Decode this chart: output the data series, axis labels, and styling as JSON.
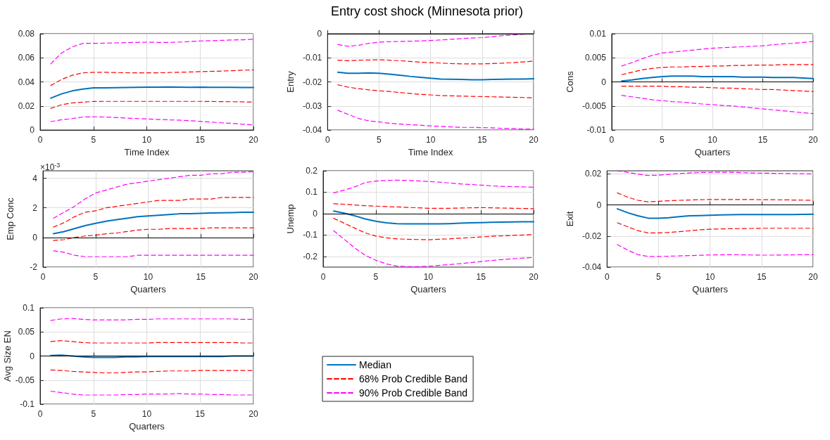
{
  "chart_data": [
    {
      "type": "line",
      "xlabel": "Time Index",
      "x": [
        1,
        2,
        3,
        4,
        5,
        6,
        7,
        8,
        9,
        10,
        11,
        12,
        13,
        14,
        15,
        16,
        17,
        18,
        19,
        20
      ],
      "xlim": [
        0,
        20
      ],
      "xticks": [
        0,
        5,
        10,
        15,
        20
      ],
      "ylim": [
        0,
        0.08
      ],
      "yticks": [
        0,
        0.02,
        0.04,
        0.06,
        0.08
      ],
      "grid": true,
      "legend": false,
      "marker": "none",
      "series": [
        {
          "color": "#0072bd",
          "line_style": "solid",
          "values": [
            0.0265,
            0.03,
            0.0325,
            0.034,
            0.035,
            0.035,
            0.0352,
            0.0354,
            0.0355,
            0.0356,
            0.0356,
            0.0358,
            0.0356,
            0.0355,
            0.0356,
            0.0355,
            0.0355,
            0.0355,
            0.0354,
            0.0354
          ]
        },
        {
          "color": "#ff0000",
          "line_style": "dashed",
          "values": [
            0.037,
            0.042,
            0.0455,
            0.0475,
            0.048,
            0.048,
            0.0478,
            0.0476,
            0.0475,
            0.0475,
            0.0475,
            0.0478,
            0.048,
            0.0482,
            0.0485,
            0.0487,
            0.049,
            0.0493,
            0.0497,
            0.05
          ]
        },
        {
          "color": "#ff0000",
          "line_style": "dashed",
          "values": [
            0.018,
            0.021,
            0.0225,
            0.0232,
            0.0237,
            0.0238,
            0.0238,
            0.0238,
            0.0238,
            0.0238,
            0.0238,
            0.0238,
            0.0238,
            0.0238,
            0.0238,
            0.0237,
            0.0236,
            0.0235,
            0.0234,
            0.0232
          ]
        },
        {
          "color": "#ff00ff",
          "line_style": "dashed",
          "values": [
            0.055,
            0.064,
            0.069,
            0.072,
            0.072,
            0.0722,
            0.0724,
            0.0726,
            0.0728,
            0.073,
            0.0728,
            0.0728,
            0.073,
            0.0735,
            0.074,
            0.0742,
            0.0745,
            0.0748,
            0.075,
            0.0755
          ]
        },
        {
          "color": "#ff00ff",
          "line_style": "dashed",
          "values": [
            0.007,
            0.0085,
            0.0095,
            0.0108,
            0.011,
            0.0108,
            0.0104,
            0.01,
            0.0096,
            0.0092,
            0.0088,
            0.0085,
            0.0082,
            0.0078,
            0.0072,
            0.0066,
            0.006,
            0.0055,
            0.0048,
            0.0042
          ]
        }
      ]
    },
    {
      "type": "line",
      "title": "Entry cost shock (Minnesota prior)",
      "xlabel": "Time Index",
      "ylabel": "Entry",
      "x": [
        1,
        2,
        3,
        4,
        5,
        6,
        7,
        8,
        9,
        10,
        11,
        12,
        13,
        14,
        15,
        16,
        17,
        18,
        19,
        20
      ],
      "xlim": [
        0,
        20
      ],
      "xticks": [
        0,
        5,
        10,
        15,
        20
      ],
      "ylim": [
        -0.04,
        0
      ],
      "yticks": [
        -0.04,
        -0.03,
        -0.02,
        -0.01,
        0
      ],
      "grid": true,
      "legend": false,
      "marker": "none",
      "ref_lines": [
        {
          "axis": "y",
          "value": 0,
          "color": "#000000"
        }
      ],
      "series": [
        {
          "color": "#0072bd",
          "line_style": "solid",
          "values": [
            -0.016,
            -0.0164,
            -0.0164,
            -0.0163,
            -0.0164,
            -0.0168,
            -0.0172,
            -0.0177,
            -0.0181,
            -0.0185,
            -0.0188,
            -0.0189,
            -0.019,
            -0.0191,
            -0.0191,
            -0.019,
            -0.0189,
            -0.0188,
            -0.0188,
            -0.0187
          ]
        },
        {
          "color": "#ff0000",
          "line_style": "dashed",
          "values": [
            -0.011,
            -0.0112,
            -0.011,
            -0.0109,
            -0.0108,
            -0.011,
            -0.0112,
            -0.0115,
            -0.0118,
            -0.012,
            -0.0122,
            -0.0124,
            -0.0125,
            -0.0125,
            -0.0125,
            -0.0124,
            -0.0122,
            -0.012,
            -0.0117,
            -0.0114
          ]
        },
        {
          "color": "#ff0000",
          "line_style": "dashed",
          "values": [
            -0.0212,
            -0.0222,
            -0.0228,
            -0.0233,
            -0.0237,
            -0.024,
            -0.0244,
            -0.0248,
            -0.0252,
            -0.0254,
            -0.0257,
            -0.0258,
            -0.0259,
            -0.026,
            -0.0261,
            -0.0262,
            -0.0263,
            -0.0264,
            -0.0265,
            -0.0266
          ]
        },
        {
          "color": "#ff00ff",
          "line_style": "dashed",
          "values": [
            -0.0045,
            -0.0052,
            -0.0048,
            -0.004,
            -0.0035,
            -0.0033,
            -0.0032,
            -0.0031,
            -0.003,
            -0.0028,
            -0.0026,
            -0.0023,
            -0.002,
            -0.0018,
            -0.0016,
            -0.0012,
            -0.0008,
            -0.0005,
            -0.0002,
            0
          ]
        },
        {
          "color": "#ff00ff",
          "line_style": "dashed",
          "values": [
            -0.0318,
            -0.0335,
            -0.0352,
            -0.0362,
            -0.0366,
            -0.0372,
            -0.0375,
            -0.0378,
            -0.038,
            -0.0383,
            -0.0385,
            -0.0387,
            -0.0389,
            -0.0389,
            -0.039,
            -0.0391,
            -0.0393,
            -0.0394,
            -0.0396,
            -0.0396
          ]
        }
      ]
    },
    {
      "type": "line",
      "xlabel": "Quarters",
      "ylabel": "Cons",
      "x": [
        1,
        2,
        3,
        4,
        5,
        6,
        7,
        8,
        9,
        10,
        11,
        12,
        13,
        14,
        15,
        16,
        17,
        18,
        19,
        20
      ],
      "xlim": [
        0,
        20
      ],
      "xticks": [
        0,
        5,
        10,
        15,
        20
      ],
      "ylim": [
        -0.01,
        0.01
      ],
      "yticks": [
        -0.01,
        -0.005,
        0,
        0.005,
        0.01
      ],
      "grid": true,
      "legend": false,
      "marker": "none",
      "ref_lines": [
        {
          "axis": "y",
          "value": 0,
          "color": "#000000"
        }
      ],
      "series": [
        {
          "color": "#0072bd",
          "line_style": "solid",
          "values": [
            0.0002,
            0.0004,
            0.0007,
            0.0009,
            0.0011,
            0.0012,
            0.0012,
            0.0012,
            0.0011,
            0.0011,
            0.0011,
            0.0011,
            0.001,
            0.001,
            0.001,
            0.0009,
            0.0009,
            0.0009,
            0.0008,
            0.0007
          ]
        },
        {
          "color": "#ff0000",
          "line_style": "dashed",
          "values": [
            0.0015,
            0.002,
            0.0025,
            0.0028,
            0.003,
            0.0031,
            0.0031,
            0.0032,
            0.0032,
            0.0033,
            0.0033,
            0.0034,
            0.0034,
            0.0035,
            0.0035,
            0.0035,
            0.0036,
            0.0036,
            0.0036,
            0.0036
          ]
        },
        {
          "color": "#ff0000",
          "line_style": "dashed",
          "values": [
            -0.0009,
            -0.0009,
            -0.0009,
            -0.0009,
            -0.0009,
            -0.001,
            -0.001,
            -0.0011,
            -0.0011,
            -0.0012,
            -0.0013,
            -0.0013,
            -0.0014,
            -0.0015,
            -0.0016,
            -0.0016,
            -0.0017,
            -0.0018,
            -0.0019,
            -0.002
          ]
        },
        {
          "color": "#ff00ff",
          "line_style": "dashed",
          "values": [
            0.0033,
            0.004,
            0.0048,
            0.0055,
            0.006,
            0.0062,
            0.0064,
            0.0066,
            0.0068,
            0.007,
            0.0071,
            0.0072,
            0.0073,
            0.0074,
            0.0075,
            0.0077,
            0.0079,
            0.008,
            0.0082,
            0.0084
          ]
        },
        {
          "color": "#ff00ff",
          "line_style": "dashed",
          "values": [
            -0.0028,
            -0.0031,
            -0.0034,
            -0.0037,
            -0.0039,
            -0.0041,
            -0.0042,
            -0.0044,
            -0.0046,
            -0.0047,
            -0.0049,
            -0.005,
            -0.0052,
            -0.0054,
            -0.0056,
            -0.0058,
            -0.006,
            -0.0062,
            -0.0064,
            -0.0066
          ]
        }
      ]
    },
    {
      "type": "line",
      "xlabel": "Quarters",
      "ylabel": "Emp Conc",
      "annotations": [
        "×10$^{-3}$"
      ],
      "x": [
        1,
        2,
        3,
        4,
        5,
        6,
        7,
        8,
        9,
        10,
        11,
        12,
        13,
        14,
        15,
        16,
        17,
        18,
        19,
        20
      ],
      "xlim": [
        0,
        20
      ],
      "xticks": [
        0,
        5,
        10,
        15,
        20
      ],
      "ylim": [
        -2,
        4.5
      ],
      "yticks": [
        -2,
        0,
        2,
        4
      ],
      "grid": true,
      "legend": false,
      "marker": "none",
      "ref_lines": [
        {
          "axis": "y",
          "value": 0,
          "color": "#000000"
        }
      ],
      "series": [
        {
          "color": "#0072bd",
          "line_style": "solid",
          "values": [
            0.25,
            0.4,
            0.6,
            0.8,
            0.95,
            1.1,
            1.2,
            1.3,
            1.4,
            1.45,
            1.5,
            1.55,
            1.6,
            1.6,
            1.63,
            1.65,
            1.67,
            1.68,
            1.7,
            1.7
          ]
        },
        {
          "color": "#ff0000",
          "line_style": "dashed",
          "values": [
            0.7,
            1.0,
            1.4,
            1.7,
            1.8,
            2.0,
            2.1,
            2.2,
            2.3,
            2.4,
            2.5,
            2.5,
            2.5,
            2.6,
            2.6,
            2.6,
            2.7,
            2.7,
            2.7,
            2.7
          ]
        },
        {
          "color": "#ff0000",
          "line_style": "dashed",
          "values": [
            -0.2,
            -0.15,
            0,
            0.1,
            0.15,
            0.25,
            0.3,
            0.4,
            0.5,
            0.55,
            0.55,
            0.6,
            0.6,
            0.6,
            0.6,
            0.65,
            0.65,
            0.65,
            0.65,
            0.65
          ]
        },
        {
          "color": "#ff00ff",
          "line_style": "dashed",
          "values": [
            1.3,
            1.7,
            2.1,
            2.6,
            3.0,
            3.2,
            3.4,
            3.6,
            3.7,
            3.8,
            3.9,
            4.0,
            4.1,
            4.2,
            4.2,
            4.3,
            4.3,
            4.4,
            4.4,
            4.45
          ]
        },
        {
          "color": "#ff00ff",
          "line_style": "dashed",
          "values": [
            -0.9,
            -1.0,
            -1.2,
            -1.3,
            -1.3,
            -1.3,
            -1.3,
            -1.3,
            -1.2,
            -1.2,
            -1.2,
            -1.2,
            -1.2,
            -1.2,
            -1.2,
            -1.2,
            -1.2,
            -1.2,
            -1.2,
            -1.2
          ]
        }
      ]
    },
    {
      "type": "line",
      "xlabel": "Quarters",
      "ylabel": "Unemp",
      "x": [
        1,
        2,
        3,
        4,
        5,
        6,
        7,
        8,
        9,
        10,
        11,
        12,
        13,
        14,
        15,
        16,
        17,
        18,
        19,
        20
      ],
      "xlim": [
        0,
        20
      ],
      "xticks": [
        0,
        5,
        10,
        15,
        20
      ],
      "ylim": [
        -0.25,
        0.2
      ],
      "yticks": [
        -0.2,
        -0.1,
        0,
        0.1,
        0.2
      ],
      "grid": true,
      "legend": false,
      "marker": "none",
      "ref_lines": [
        {
          "axis": "y",
          "value": 0,
          "color": "#000000"
        }
      ],
      "series": [
        {
          "color": "#0072bd",
          "line_style": "solid",
          "values": [
            0.012,
            0.002,
            -0.01,
            -0.025,
            -0.036,
            -0.043,
            -0.047,
            -0.048,
            -0.048,
            -0.048,
            -0.048,
            -0.047,
            -0.045,
            -0.043,
            -0.042,
            -0.041,
            -0.04,
            -0.039,
            -0.038,
            -0.038
          ]
        },
        {
          "color": "#ff0000",
          "line_style": "dashed",
          "values": [
            0.046,
            0.044,
            0.04,
            0.037,
            0.035,
            0.033,
            0.031,
            0.029,
            0.027,
            0.025,
            0.025,
            0.025,
            0.026,
            0.027,
            0.028,
            0.027,
            0.026,
            0.025,
            0.024,
            0.023
          ]
        },
        {
          "color": "#ff0000",
          "line_style": "dashed",
          "values": [
            -0.022,
            -0.045,
            -0.068,
            -0.09,
            -0.105,
            -0.113,
            -0.118,
            -0.12,
            -0.121,
            -0.122,
            -0.12,
            -0.118,
            -0.115,
            -0.112,
            -0.109,
            -0.106,
            -0.104,
            -0.102,
            -0.1,
            -0.098
          ]
        },
        {
          "color": "#ff00ff",
          "line_style": "dashed",
          "values": [
            0.097,
            0.11,
            0.125,
            0.145,
            0.152,
            0.155,
            0.156,
            0.155,
            0.153,
            0.15,
            0.147,
            0.143,
            0.139,
            0.136,
            0.133,
            0.13,
            0.127,
            0.126,
            0.125,
            0.123
          ]
        },
        {
          "color": "#ff00ff",
          "line_style": "dashed",
          "values": [
            -0.08,
            -0.12,
            -0.16,
            -0.195,
            -0.218,
            -0.235,
            -0.245,
            -0.248,
            -0.248,
            -0.246,
            -0.242,
            -0.238,
            -0.234,
            -0.229,
            -0.224,
            -0.219,
            -0.215,
            -0.211,
            -0.208,
            -0.205
          ]
        }
      ]
    },
    {
      "type": "line",
      "xlabel": "Quarters",
      "ylabel": "Exit",
      "x": [
        1,
        2,
        3,
        4,
        5,
        6,
        7,
        8,
        9,
        10,
        11,
        12,
        13,
        14,
        15,
        16,
        17,
        18,
        19,
        20
      ],
      "xlim": [
        0,
        20
      ],
      "xticks": [
        0,
        5,
        10,
        15,
        20
      ],
      "ylim": [
        -0.04,
        0.022
      ],
      "yticks": [
        -0.04,
        -0.02,
        0,
        0.02
      ],
      "grid": true,
      "legend": false,
      "marker": "none",
      "ref_lines": [
        {
          "axis": "y",
          "value": 0,
          "color": "#000000"
        }
      ],
      "series": [
        {
          "color": "#0072bd",
          "line_style": "solid",
          "values": [
            -0.0025,
            -0.005,
            -0.007,
            -0.0085,
            -0.0085,
            -0.0082,
            -0.0075,
            -0.007,
            -0.0068,
            -0.0066,
            -0.0064,
            -0.0063,
            -0.0062,
            -0.0062,
            -0.0062,
            -0.0062,
            -0.0062,
            -0.0062,
            -0.0061,
            -0.006
          ]
        },
        {
          "color": "#ff0000",
          "line_style": "dashed",
          "values": [
            0.0078,
            0.005,
            0.003,
            0.002,
            0.0024,
            0.0027,
            0.003,
            0.0032,
            0.0034,
            0.0035,
            0.0035,
            0.0035,
            0.0035,
            0.0035,
            0.0034,
            0.0034,
            0.0033,
            0.0032,
            0.0031,
            0.003
          ]
        },
        {
          "color": "#ff0000",
          "line_style": "dashed",
          "values": [
            -0.0115,
            -0.014,
            -0.0165,
            -0.018,
            -0.018,
            -0.0177,
            -0.0172,
            -0.0166,
            -0.016,
            -0.0156,
            -0.0154,
            -0.0153,
            -0.0152,
            -0.0151,
            -0.015,
            -0.015,
            -0.015,
            -0.015,
            -0.015,
            -0.015
          ]
        },
        {
          "color": "#ff00ff",
          "line_style": "dashed",
          "values": [
            0.022,
            0.021,
            0.0198,
            0.019,
            0.0192,
            0.0197,
            0.0202,
            0.0206,
            0.0209,
            0.021,
            0.021,
            0.021,
            0.0208,
            0.0206,
            0.0205,
            0.0204,
            0.0203,
            0.0202,
            0.0201,
            0.02
          ]
        },
        {
          "color": "#ff00ff",
          "line_style": "dashed",
          "values": [
            -0.0255,
            -0.029,
            -0.032,
            -0.0332,
            -0.0332,
            -0.033,
            -0.0328,
            -0.0326,
            -0.0324,
            -0.0322,
            -0.0321,
            -0.032,
            -0.0321,
            -0.0322,
            -0.0323,
            -0.0323,
            -0.0322,
            -0.0321,
            -0.032,
            -0.032
          ]
        }
      ]
    },
    {
      "type": "line",
      "xlabel": "Quarters",
      "ylabel": "Avg Size EN",
      "x": [
        1,
        2,
        3,
        4,
        5,
        6,
        7,
        8,
        9,
        10,
        11,
        12,
        13,
        14,
        15,
        16,
        17,
        18,
        19,
        20
      ],
      "xlim": [
        0,
        20
      ],
      "xticks": [
        0,
        5,
        10,
        15,
        20
      ],
      "ylim": [
        -0.1,
        0.1
      ],
      "yticks": [
        -0.1,
        -0.05,
        0,
        0.05,
        0.1
      ],
      "grid": true,
      "legend": "right",
      "marker": "none",
      "ref_lines": [
        {
          "axis": "y",
          "value": 0,
          "color": "#000000"
        }
      ],
      "series": [
        {
          "name": "Median",
          "color": "#0072bd",
          "line_style": "solid",
          "values": [
            0.001,
            0.002,
            0,
            -0.002,
            -0.003,
            -0.003,
            -0.003,
            -0.002,
            -0.002,
            -0.001,
            -0.001,
            -0.001,
            -0.001,
            -0.001,
            -0.001,
            -0.001,
            -0.001,
            0,
            0,
            0
          ]
        },
        {
          "name": "68% Prob Credible Band",
          "color": "#ff0000",
          "line_style": "dashed",
          "values": [
            0.03,
            0.032,
            0.03,
            0.028,
            0.027,
            0.027,
            0.027,
            0.027,
            0.027,
            0.027,
            0.028,
            0.028,
            0.028,
            0.028,
            0.028,
            0.028,
            0.028,
            0.028,
            0.027,
            0.027
          ]
        },
        {
          "color": "#ff0000",
          "line_style": "dashed",
          "values": [
            -0.029,
            -0.03,
            -0.032,
            -0.033,
            -0.034,
            -0.035,
            -0.035,
            -0.034,
            -0.033,
            -0.033,
            -0.032,
            -0.031,
            -0.031,
            -0.031,
            -0.03,
            -0.03,
            -0.03,
            -0.03,
            -0.03,
            -0.03
          ]
        },
        {
          "name": "90% Prob Credible Band",
          "color": "#ff00ff",
          "line_style": "dashed",
          "values": [
            0.074,
            0.077,
            0.078,
            0.076,
            0.075,
            0.075,
            0.075,
            0.075,
            0.076,
            0.076,
            0.077,
            0.077,
            0.077,
            0.077,
            0.077,
            0.077,
            0.077,
            0.077,
            0.076,
            0.076
          ]
        },
        {
          "color": "#ff00ff",
          "line_style": "dashed",
          "values": [
            -0.073,
            -0.076,
            -0.079,
            -0.081,
            -0.081,
            -0.081,
            -0.081,
            -0.08,
            -0.08,
            -0.079,
            -0.079,
            -0.079,
            -0.078,
            -0.079,
            -0.079,
            -0.08,
            -0.08,
            -0.081,
            -0.081,
            -0.081
          ]
        }
      ]
    }
  ]
}
